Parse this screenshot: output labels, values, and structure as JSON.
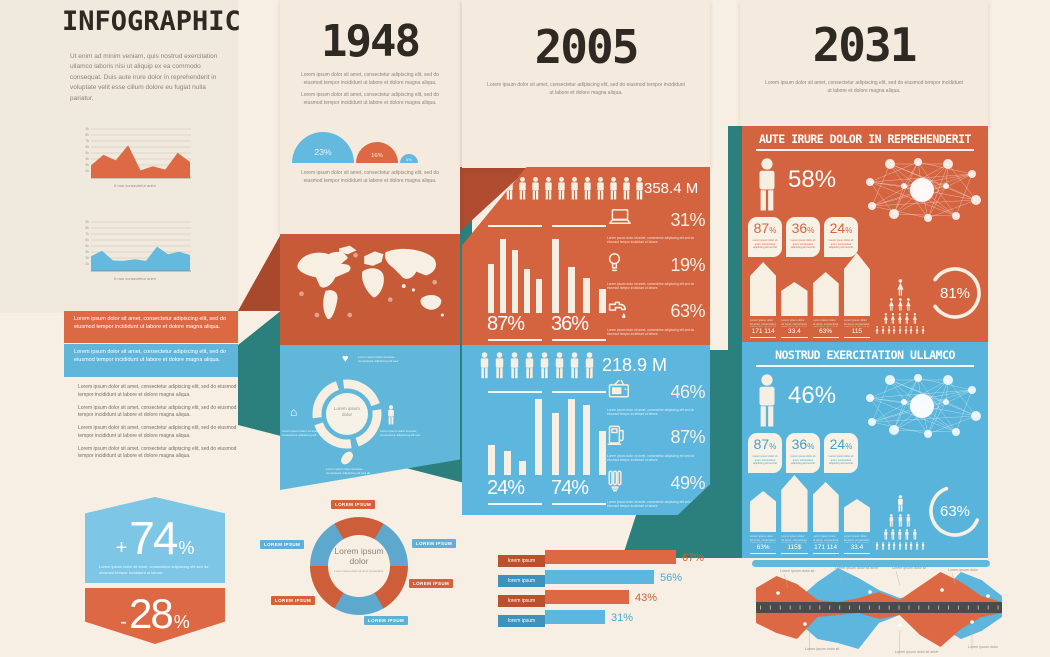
{
  "texts": {
    "title": "INFOGRAPHIC",
    "intro": "Ut enim ad minim veniam, quis nostrud exercitation ullamco laboris nisi ut aliquip ex ea commodo consequat. Duis aute irure dolor in reprehenderit in voluptate velit esse cillum dolore eu fugiat nulla pariatur.",
    "lorem": "Lorem ipsum dolor sit amet, consectetur adipiscing elit, sed do eiusmod tempor incididunt ut labore et dolore magna aliqua.",
    "tiny": "Lorem ipsum dolor sit amet, consectetur adipiscing elit sed do eiusmod tempor incididunt ut labore.",
    "pct": "%",
    "years": {
      "y1948": "1948",
      "y2005": "2005",
      "y2031": "2031"
    },
    "headings": {
      "orange2031": "AUTE IRURE DOLOR IN REPREHENDERIT",
      "blue2031": "NOSTRUD EXERCITATION ULLAMCO"
    },
    "big": {
      "o2031": "58%",
      "b2031": "46%"
    },
    "badges": [
      "87",
      "36",
      "24"
    ],
    "hex": {
      "up_sign": "+",
      "up_num": "74",
      "down_sign": "-",
      "down_num": "28"
    },
    "tag": "LOREM IPSUM",
    "donut_center": {
      "title": "Lorem ipsum",
      "sub": "dolor",
      "note": "Lorem ipsum dolor sit amet consectetur"
    }
  },
  "chart_data": {
    "area_orange": {
      "type": "area",
      "values": [
        30,
        55,
        42,
        78,
        18,
        28,
        20,
        60,
        38
      ],
      "color": "#dd6a44",
      "caption": "It non consectetur anim",
      "yticks": [
        "9k",
        "8k",
        "7k",
        "6k",
        "5k",
        "4k",
        "3k",
        "2k"
      ],
      "ylim": [
        0,
        100
      ],
      "grid": true
    },
    "area_blue": {
      "type": "area",
      "values": [
        35,
        48,
        25,
        24,
        28,
        24,
        58,
        40,
        46,
        38
      ],
      "color": "#63b9de",
      "caption": "It non consectetur anim",
      "yticks": [
        "9k",
        "8k",
        "7k",
        "6k",
        "5k",
        "4k",
        "3k",
        "2k"
      ],
      "ylim": [
        0,
        100
      ],
      "grid": true
    },
    "semis_1948": {
      "type": "pie",
      "slices": [
        {
          "label": "23%",
          "value": 23,
          "color": "#63b9de",
          "r": 31
        },
        {
          "label": "16%",
          "value": 16,
          "color": "#dd6944",
          "r": 21
        },
        {
          "label": "5%",
          "value": 5,
          "color": "#63b9de",
          "r": 9
        }
      ]
    },
    "population_2005_orange": {
      "type": "pictogram",
      "count": 13,
      "label": "358.4 M"
    },
    "population_2005_blue": {
      "type": "pictogram",
      "count": 8,
      "label": "218.9 M"
    },
    "bars_2005_orange": {
      "type": "bar",
      "series": [
        {
          "name": "87%",
          "values": [
            58,
            88,
            75,
            52,
            40
          ]
        },
        {
          "name": "36%",
          "values": [
            88,
            55,
            42,
            28
          ]
        }
      ]
    },
    "stats_2005_orange": {
      "type": "table",
      "rows": [
        {
          "icon": "laptop",
          "value": "31%"
        },
        {
          "icon": "bulb",
          "value": "19%"
        },
        {
          "icon": "tap",
          "value": "63%"
        }
      ]
    },
    "bars_2005_blue": {
      "type": "bar",
      "series": [
        {
          "name": "24%",
          "values": [
            38,
            30,
            18,
            95
          ]
        },
        {
          "name": "74%",
          "values": [
            78,
            95,
            88,
            55
          ]
        }
      ]
    },
    "stats_2005_blue": {
      "type": "table",
      "rows": [
        {
          "icon": "tv",
          "value": "46%"
        },
        {
          "icon": "pump",
          "value": "87%"
        },
        {
          "icon": "cfl",
          "value": "49%"
        }
      ]
    },
    "arrows_2031_orange": {
      "type": "bar",
      "values": [
        54,
        34,
        44,
        63
      ],
      "labels": [
        "171 114",
        "33.4",
        "63%",
        "115"
      ]
    },
    "arrows_2031_blue": {
      "type": "bar",
      "values": [
        41,
        57,
        50,
        33
      ],
      "labels": [
        "63%",
        "115$",
        "171 114",
        "33.4"
      ]
    },
    "ring_2031_orange": {
      "type": "pie",
      "value": 81,
      "label": "81%"
    },
    "ring_2031_blue": {
      "type": "pie",
      "value": 63,
      "label": "63%"
    },
    "pyramid_2031_orange": {
      "type": "pictogram",
      "rows": [
        1,
        3,
        5,
        9
      ],
      "figure": "female"
    },
    "pyramid_2031_blue": {
      "type": "pictogram",
      "rows": [
        1,
        3,
        5,
        9
      ],
      "figure": "male"
    },
    "hbars": {
      "type": "bar",
      "rows": [
        {
          "label": "lorem ipsum",
          "value": 67,
          "color": "orange"
        },
        {
          "label": "lorem ipsum",
          "value": 56,
          "color": "blue"
        },
        {
          "label": "lorem ipsum",
          "value": 43,
          "color": "orange"
        },
        {
          "label": "lorem ipsum",
          "value": 31,
          "color": "blue"
        }
      ]
    },
    "donut": {
      "type": "pie",
      "segments": [
        {
          "color": "#cd5e39"
        },
        {
          "color": "#5fa8cd"
        },
        {
          "color": "#cd5e39"
        },
        {
          "color": "#5fa8cd"
        },
        {
          "color": "#cd5e39"
        },
        {
          "color": "#5fa8cd"
        }
      ],
      "labels": [
        "LOREM IPSUM",
        "LOREM IPSUM",
        "LOREM IPSUM",
        "LOREM IPSUM",
        "LOREM IPSUM",
        "LOREM IPSUM"
      ]
    },
    "stream": {
      "type": "area",
      "series": [
        {
          "name": "blue",
          "up": [
            2,
            6,
            2,
            20,
            34,
            24,
            12,
            4,
            6,
            10,
            30,
            22,
            6
          ],
          "down": [
            0,
            4,
            8,
            26,
            30,
            36,
            10,
            2,
            8,
            14,
            26,
            18,
            4
          ]
        },
        {
          "name": "orange",
          "up": [
            14,
            26,
            18,
            2,
            0,
            4,
            10,
            2,
            16,
            30,
            20,
            6,
            0
          ],
          "down": [
            10,
            20,
            26,
            4,
            2,
            0,
            6,
            2,
            22,
            34,
            16,
            4,
            0
          ]
        }
      ],
      "callouts": [
        "Lorem ipsum dolor sit",
        "Lorem ipsum dolor sit amet",
        "Lorem ipsum dolor sit",
        "Lorem ipsum dolor",
        "Lorem ipsum dolor sit",
        "Lorem ipsum dolor sit amet",
        "Lorem ipsum dolor"
      ]
    },
    "hex": {
      "type": "table",
      "up": "+74%",
      "down": "-28%"
    }
  }
}
